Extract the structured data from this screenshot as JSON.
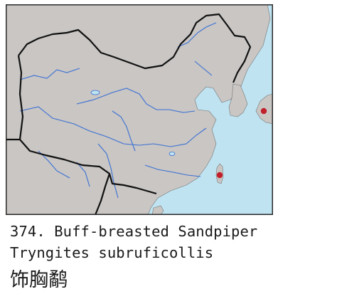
{
  "colors": {
    "sea": "#bfe3f1",
    "land": "#c9c6c4",
    "border": "#111111",
    "river": "#3a6fd3",
    "frame": "#2a2a2a",
    "record": "#c21f2c"
  },
  "species": {
    "number": "374",
    "common_name": "Buff-breasted Sandpiper",
    "line1": "374. Buff-breasted Sandpiper",
    "scientific_name": "Tryngites subruficollis",
    "chinese_name": "饰胸鹬"
  },
  "map": {
    "records": [
      {
        "name": "record-dot-taiwan"
      },
      {
        "name": "record-dot-japan"
      }
    ]
  }
}
